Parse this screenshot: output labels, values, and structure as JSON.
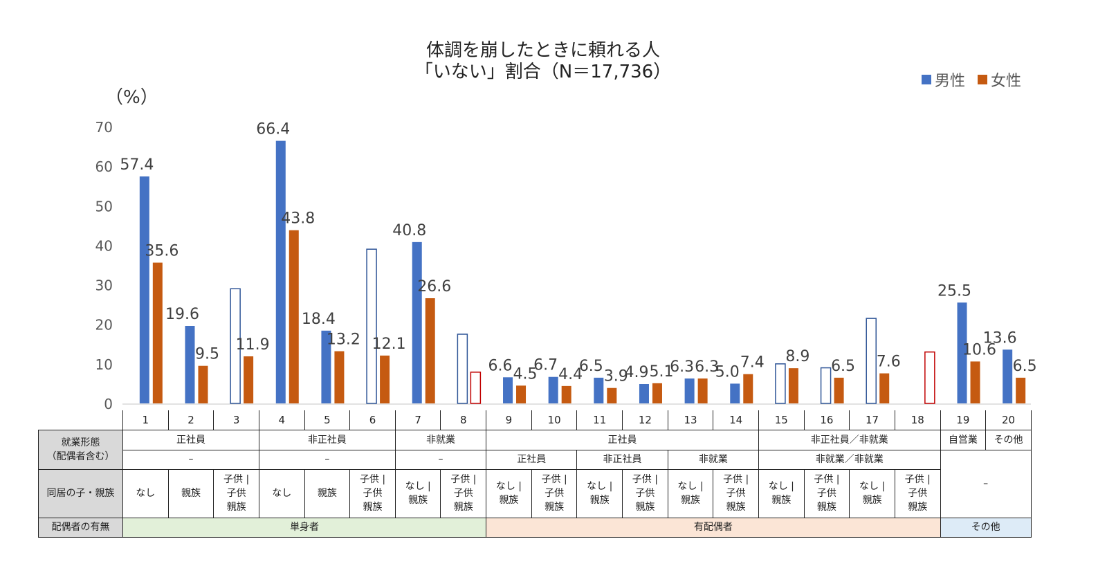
{
  "title_lines": [
    "体調を崩したときに頼れる人",
    "「いない」割合（N＝17,736）"
  ],
  "legend": [
    {
      "label": "男性",
      "color": "#4472C4"
    },
    {
      "label": "女性",
      "color": "#C55A11"
    }
  ],
  "colors": {
    "male": "#4472C4",
    "female": "#C55A11",
    "hollow_male": "#2F5597",
    "hollow_female": "#C00000",
    "single": "#E2F0D9",
    "married": "#FBE5D6",
    "other": "#DDEBF7",
    "header": "#D9D9D9"
  },
  "chart_data": {
    "type": "bar",
    "title": "体調を崩したときに頼れる人「いない」割合（N＝17,736）",
    "ylabel": "（%）",
    "ylim": [
      0,
      70
    ],
    "yticks": [
      "0",
      "10",
      "20",
      "30",
      "40",
      "50",
      "60",
      "70"
    ],
    "grid": false,
    "legend_position": "top-right",
    "categories": [
      "1",
      "2",
      "3",
      "4",
      "5",
      "6",
      "7",
      "8",
      "9",
      "10",
      "11",
      "12",
      "13",
      "14",
      "15",
      "16",
      "17",
      "18",
      "19",
      "20"
    ],
    "series": [
      {
        "name": "男性",
        "values": [
          57.4,
          19.6,
          29,
          66.4,
          18.4,
          39,
          40.8,
          17.5,
          6.6,
          6.7,
          6.5,
          4.9,
          6.3,
          5.0,
          10,
          9,
          21.5,
          null,
          25.5,
          13.6
        ],
        "hollow": [
          false,
          false,
          true,
          false,
          false,
          true,
          false,
          true,
          false,
          false,
          false,
          false,
          false,
          false,
          true,
          true,
          true,
          false,
          false,
          false
        ],
        "labels": [
          "57.4",
          "19.6",
          "",
          "66.4",
          "18.4",
          "",
          "40.8",
          "",
          "6.6",
          "6.7",
          "6.5",
          "4.9",
          "6.3",
          "5.0",
          "",
          "",
          "",
          "",
          "25.5",
          "13.6"
        ]
      },
      {
        "name": "女性",
        "values": [
          35.6,
          9.5,
          11.9,
          43.8,
          13.2,
          12.1,
          26.6,
          7.9,
          4.5,
          4.4,
          3.9,
          5.1,
          6.3,
          7.4,
          8.9,
          6.5,
          7.6,
          13,
          10.6,
          6.5
        ],
        "hollow": [
          false,
          false,
          false,
          false,
          false,
          false,
          false,
          true,
          false,
          false,
          false,
          false,
          false,
          false,
          false,
          false,
          false,
          true,
          false,
          false
        ],
        "labels": [
          "35.6",
          "9.5",
          "11.9",
          "43.8",
          "13.2",
          "12.1",
          "26.6",
          "",
          "4.5",
          "4.4",
          "3.9",
          "5.1",
          "6.3",
          "7.4",
          "8.9",
          "6.5",
          "7.6",
          "",
          "10.6",
          "6.5"
        ]
      }
    ]
  },
  "table": {
    "row_headers": {
      "employment": [
        "就業形態",
        "（配偶者含む）"
      ],
      "cohabit": "同居の子・親族",
      "spouse": "配偶者の有無"
    },
    "employment_row1": [
      {
        "text": "正社員",
        "span": 3
      },
      {
        "text": "非正社員",
        "span": 3
      },
      {
        "text": "非就業",
        "span": 2
      },
      {
        "text": "正社員",
        "span": 6
      },
      {
        "text": "非正社員／非就業",
        "span": 4
      },
      {
        "text": "自営業",
        "span": 1
      },
      {
        "text": "その他",
        "span": 1
      }
    ],
    "employment_row2": [
      {
        "text": "–",
        "span": 3
      },
      {
        "text": "–",
        "span": 3
      },
      {
        "text": "–",
        "span": 2
      },
      {
        "text": "正社員",
        "span": 2
      },
      {
        "text": "非正社員",
        "span": 2
      },
      {
        "text": "非就業",
        "span": 2
      },
      {
        "text": "非就業／非就業",
        "span": 4
      },
      {
        "text": "–",
        "span": 2,
        "rowspan": 2
      }
    ],
    "cohabit": [
      [
        "なし"
      ],
      [
        "親族"
      ],
      [
        "子供 |",
        "子供",
        "親族"
      ],
      [
        "なし"
      ],
      [
        "親族"
      ],
      [
        "子供 |",
        "子供",
        "親族"
      ],
      [
        "なし |",
        "親族"
      ],
      [
        "子供 |",
        "子供",
        "親族"
      ],
      [
        "なし |",
        "親族"
      ],
      [
        "子供 |",
        "子供",
        "親族"
      ],
      [
        "なし |",
        "親族"
      ],
      [
        "子供 |",
        "子供",
        "親族"
      ],
      [
        "なし |",
        "親族"
      ],
      [
        "子供 |",
        "子供",
        "親族"
      ],
      [
        "なし |",
        "親族"
      ],
      [
        "子供 |",
        "子供",
        "親族"
      ],
      [
        "なし |",
        "親族"
      ],
      [
        "子供 |",
        "子供",
        "親族"
      ]
    ],
    "spouse": [
      {
        "text": "単身者",
        "span": 8,
        "kind": "single"
      },
      {
        "text": "有配偶者",
        "span": 10,
        "kind": "married"
      },
      {
        "text": "その他",
        "span": 2,
        "kind": "other"
      }
    ]
  }
}
